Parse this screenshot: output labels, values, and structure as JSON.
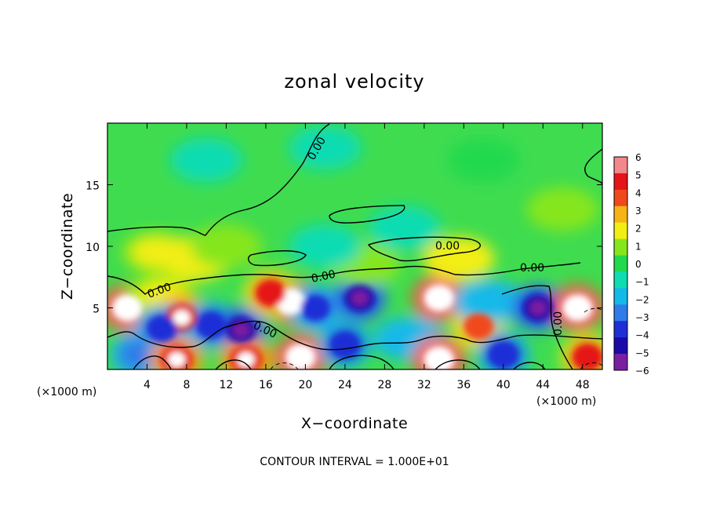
{
  "chart_data": {
    "type": "heatmap",
    "title": "zonal velocity",
    "xlabel": "X−coordinate",
    "ylabel": "Z−coordinate",
    "x_unit_left": "(×1000 m)",
    "x_unit_right": "(×1000 m)",
    "x_ticks": [
      4,
      8,
      12,
      16,
      20,
      24,
      28,
      32,
      36,
      40,
      44,
      48
    ],
    "y_ticks": [
      5,
      10,
      15
    ],
    "xlim": [
      0,
      50
    ],
    "ylim": [
      0,
      20
    ],
    "contour_label": "0.00",
    "contour_interval_note": "CONTOUR INTERVAL = 1.000E+01",
    "colorbar": {
      "labels": [
        "6",
        "5",
        "4",
        "3",
        "2",
        "1",
        "0",
        "−1",
        "−2",
        "−3",
        "−4",
        "−5",
        "−6"
      ],
      "range": [
        -6,
        6
      ],
      "colors": [
        "#7a1fa2",
        "#1a0aa8",
        "#1f2fd6",
        "#2f7be8",
        "#14b9ea",
        "#10dcb2",
        "#22d94e",
        "#86e61e",
        "#f2ee12",
        "#f5b414",
        "#f0481c",
        "#e41418",
        "#f2888a"
      ]
    },
    "regions": [
      {
        "x": 2.0,
        "z": 5.0,
        "u": 7.0
      },
      {
        "x": 5.5,
        "z": 6.0,
        "u": 2.5
      },
      {
        "x": 7.5,
        "z": 4.2,
        "u": 5.0
      },
      {
        "x": 5.5,
        "z": 3.3,
        "u": -4.5
      },
      {
        "x": 3.0,
        "z": 1.2,
        "u": -3.5
      },
      {
        "x": 7.0,
        "z": 0.8,
        "u": 5.0
      },
      {
        "x": 10.5,
        "z": 3.6,
        "u": -4.5
      },
      {
        "x": 13.5,
        "z": 3.2,
        "u": -5.5
      },
      {
        "x": 14.0,
        "z": 0.8,
        "u": 5.0
      },
      {
        "x": 18.5,
        "z": 5.5,
        "u": 7.5
      },
      {
        "x": 16.5,
        "z": 6.2,
        "u": 4.5
      },
      {
        "x": 21.0,
        "z": 5.0,
        "u": -4.0
      },
      {
        "x": 19.5,
        "z": 1.0,
        "u": 7.0
      },
      {
        "x": 25.5,
        "z": 5.8,
        "u": -5.5
      },
      {
        "x": 24.0,
        "z": 2.0,
        "u": -4.5
      },
      {
        "x": 30.5,
        "z": 2.5,
        "u": -3.0
      },
      {
        "x": 33.5,
        "z": 5.8,
        "u": 7.5
      },
      {
        "x": 37.5,
        "z": 3.5,
        "u": 4.0
      },
      {
        "x": 38.5,
        "z": 5.5,
        "u": -3.0
      },
      {
        "x": 33.5,
        "z": 0.8,
        "u": 7.0
      },
      {
        "x": 40.0,
        "z": 1.2,
        "u": -4.5
      },
      {
        "x": 43.5,
        "z": 5.0,
        "u": -5.5
      },
      {
        "x": 47.5,
        "z": 5.0,
        "u": 7.5
      },
      {
        "x": 48.5,
        "z": 1.0,
        "u": 4.5
      },
      {
        "x": 5.0,
        "z": 9.5,
        "u": 2.5
      },
      {
        "x": 9.0,
        "z": 9.0,
        "u": 3.0
      },
      {
        "x": 12.0,
        "z": 10.0,
        "u": 1.5
      },
      {
        "x": 26.0,
        "z": 8.5,
        "u": 1.8
      },
      {
        "x": 35.5,
        "z": 9.0,
        "u": 2.8
      },
      {
        "x": 22.0,
        "z": 10.0,
        "u": -1.2
      },
      {
        "x": 30.0,
        "z": 11.5,
        "u": -1.0
      },
      {
        "x": 10.0,
        "z": 17.0,
        "u": -1.5
      },
      {
        "x": 22.0,
        "z": 18.0,
        "u": -1.2
      },
      {
        "x": 38.0,
        "z": 17.0,
        "u": 0.5
      },
      {
        "x": 46.0,
        "z": 13.0,
        "u": 1.0
      }
    ]
  }
}
